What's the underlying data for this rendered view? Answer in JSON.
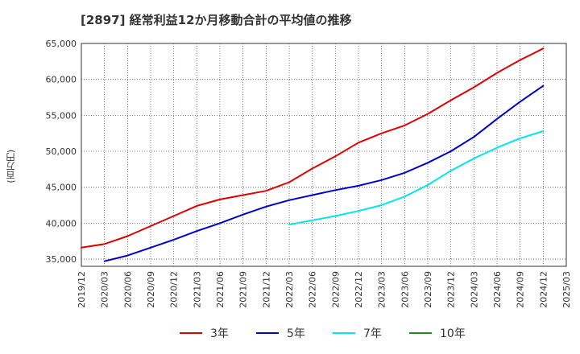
{
  "chart_data": {
    "type": "line",
    "title": "[2897]  経常利益12か月移動合計の平均値の推移",
    "ylabel": "(百万円)",
    "xlabel": "",
    "ylim": [
      34000,
      65000
    ],
    "yticks": [
      35000,
      40000,
      45000,
      50000,
      55000,
      60000,
      65000
    ],
    "ytick_labels": [
      "35,000",
      "40,000",
      "45,000",
      "50,000",
      "55,000",
      "60,000",
      "65,000"
    ],
    "xticks": [
      "2019/12",
      "2020/03",
      "2020/06",
      "2020/09",
      "2020/12",
      "2021/03",
      "2021/06",
      "2021/09",
      "2021/12",
      "2022/03",
      "2022/06",
      "2022/09",
      "2022/12",
      "2023/03",
      "2023/06",
      "2023/09",
      "2023/12",
      "2024/03",
      "2024/06",
      "2024/09",
      "2024/12",
      "2025/03"
    ],
    "grid": true,
    "legend_position": "bottom",
    "series": [
      {
        "name": "3年",
        "color": "#e00000",
        "points": [
          [
            "2019/12",
            36600
          ],
          [
            "2020/03",
            37100
          ],
          [
            "2020/06",
            38200
          ],
          [
            "2020/09",
            39600
          ],
          [
            "2020/12",
            41000
          ],
          [
            "2021/03",
            42400
          ],
          [
            "2021/06",
            43300
          ],
          [
            "2021/09",
            43900
          ],
          [
            "2021/12",
            44500
          ],
          [
            "2022/03",
            45700
          ],
          [
            "2022/06",
            47600
          ],
          [
            "2022/09",
            49300
          ],
          [
            "2022/12",
            51200
          ],
          [
            "2023/03",
            52500
          ],
          [
            "2023/06",
            53600
          ],
          [
            "2023/09",
            55200
          ],
          [
            "2023/12",
            57100
          ],
          [
            "2024/03",
            58900
          ],
          [
            "2024/06",
            60900
          ],
          [
            "2024/09",
            62700
          ],
          [
            "2024/12",
            64300
          ]
        ]
      },
      {
        "name": "5年",
        "color": "#0000cc",
        "points": [
          [
            "2020/03",
            34700
          ],
          [
            "2020/06",
            35500
          ],
          [
            "2020/09",
            36600
          ],
          [
            "2020/12",
            37700
          ],
          [
            "2021/03",
            38900
          ],
          [
            "2021/06",
            40000
          ],
          [
            "2021/09",
            41200
          ],
          [
            "2021/12",
            42300
          ],
          [
            "2022/03",
            43200
          ],
          [
            "2022/06",
            43900
          ],
          [
            "2022/09",
            44600
          ],
          [
            "2022/12",
            45200
          ],
          [
            "2023/03",
            46000
          ],
          [
            "2023/06",
            47000
          ],
          [
            "2023/09",
            48400
          ],
          [
            "2023/12",
            50000
          ],
          [
            "2024/03",
            52000
          ],
          [
            "2024/06",
            54500
          ],
          [
            "2024/09",
            56900
          ],
          [
            "2024/12",
            59100
          ]
        ]
      },
      {
        "name": "7年",
        "color": "#00e5ee",
        "points": [
          [
            "2022/03",
            39800
          ],
          [
            "2022/06",
            40400
          ],
          [
            "2022/09",
            41000
          ],
          [
            "2022/12",
            41700
          ],
          [
            "2023/03",
            42500
          ],
          [
            "2023/06",
            43700
          ],
          [
            "2023/09",
            45300
          ],
          [
            "2023/12",
            47300
          ],
          [
            "2024/03",
            49000
          ],
          [
            "2024/06",
            50500
          ],
          [
            "2024/09",
            51800
          ],
          [
            "2024/12",
            52800
          ]
        ]
      },
      {
        "name": "10年",
        "color": "#228b22",
        "points": []
      }
    ]
  }
}
